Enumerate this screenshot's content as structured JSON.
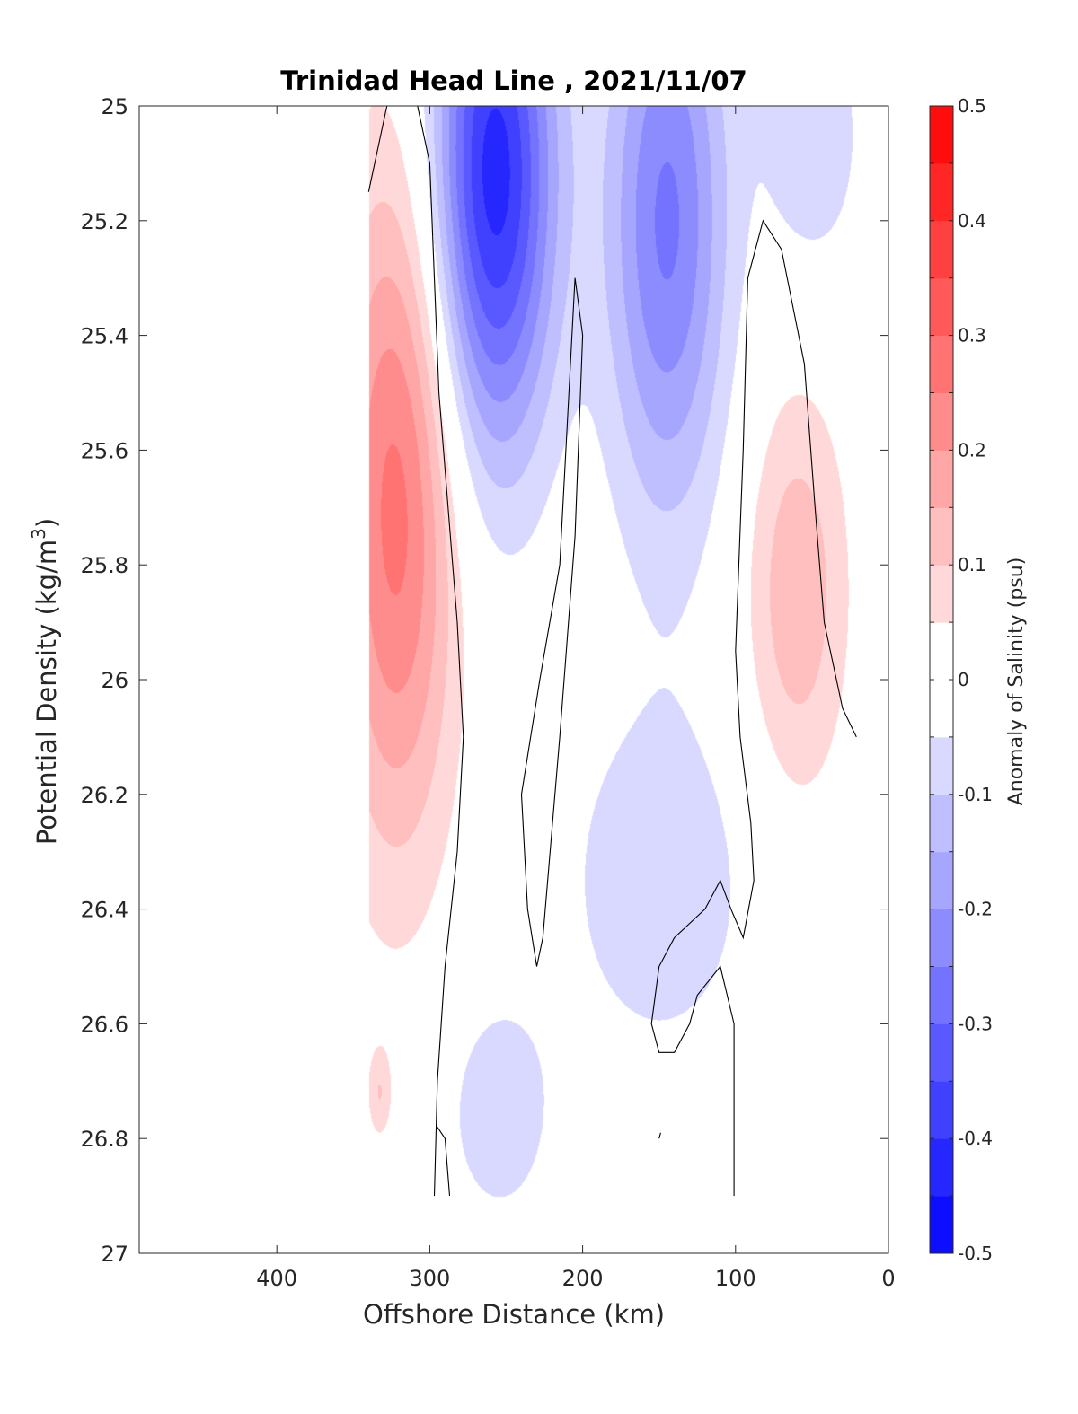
{
  "chart_data": {
    "type": "heatmap",
    "title": "Trinidad Head Line , 2021/11/07",
    "xlabel": "Offshore Distance (km)",
    "ylabel": "Potential Density (kg/m",
    "ylabel_sup": "3",
    "ylabel_suffix": ")",
    "colorbar_label": "Anomaly of Salinity (psu)",
    "x_reversed": true,
    "xlim": [
      490,
      0
    ],
    "ylim": [
      25,
      27
    ],
    "y_reversed": true,
    "xticks": [
      400,
      300,
      200,
      100,
      0
    ],
    "yticks": [
      25,
      25.2,
      25.4,
      25.6,
      25.8,
      26,
      26.2,
      26.4,
      26.6,
      26.8,
      27
    ],
    "colorbar": {
      "range": [
        -0.5,
        0.5
      ],
      "step": 0.05,
      "tick_values": [
        0.5,
        0.4,
        0.3,
        0.2,
        0.1,
        0,
        -0.1,
        -0.2,
        -0.3,
        -0.4,
        -0.5
      ],
      "tick_labels": [
        "0.5",
        "0.4",
        "0.3",
        "0.2",
        "0.1",
        "0",
        "-0.1",
        "-0.2",
        "-0.3",
        "-0.4",
        "-0.5"
      ]
    },
    "data_extent": {
      "x": [
        340,
        10
      ],
      "y": [
        25,
        26.9
      ]
    },
    "anomaly_features": [
      {
        "sign": "positive",
        "x": 322,
        "y": 25.7,
        "peak": 0.27,
        "x_halfwidth": 50,
        "y_halfwidth": 0.75
      },
      {
        "sign": "positive",
        "x": 60,
        "y": 25.85,
        "peak": 0.14,
        "x_halfwidth": 42,
        "y_halfwidth": 0.45
      },
      {
        "sign": "positive",
        "x": 333,
        "y": 26.72,
        "peak": 0.09,
        "x_halfwidth": 10,
        "y_halfwidth": 0.1
      },
      {
        "sign": "negative",
        "x": 258,
        "y": 25.12,
        "peak": -0.43,
        "x_halfwidth": 50,
        "y_halfwidth": 0.6
      },
      {
        "sign": "negative",
        "x": 145,
        "y": 25.2,
        "peak": -0.26,
        "x_halfwidth": 50,
        "y_halfwidth": 0.65
      },
      {
        "sign": "negative",
        "x": 50,
        "y": 25.05,
        "peak": -0.1,
        "x_halfwidth": 40,
        "y_halfwidth": 0.3
      },
      {
        "sign": "negative",
        "x": 150,
        "y": 26.35,
        "peak": -0.09,
        "x_halfwidth": 80,
        "y_halfwidth": 0.4
      },
      {
        "sign": "negative",
        "x": 255,
        "y": 26.75,
        "peak": -0.09,
        "x_halfwidth": 45,
        "y_halfwidth": 0.25
      }
    ],
    "zero_contours": [
      [
        [
          340,
          25.15
        ],
        [
          328,
          25.0
        ]
      ],
      [
        [
          308,
          25.0
        ],
        [
          300,
          25.1
        ],
        [
          297,
          25.3
        ],
        [
          294,
          25.5
        ],
        [
          288,
          25.7
        ],
        [
          282,
          25.9
        ],
        [
          278,
          26.1
        ],
        [
          282,
          26.3
        ],
        [
          290,
          26.5
        ],
        [
          295,
          26.7
        ],
        [
          297,
          26.9
        ]
      ],
      [
        [
          287,
          26.9
        ],
        [
          290,
          26.8
        ],
        [
          295,
          26.78
        ]
      ],
      [
        [
          205,
          25.3
        ],
        [
          208,
          25.45
        ],
        [
          215,
          25.8
        ],
        [
          228,
          26.0
        ],
        [
          240,
          26.2
        ],
        [
          236,
          26.4
        ],
        [
          230,
          26.5
        ],
        [
          226,
          26.45
        ],
        [
          215,
          26.1
        ],
        [
          205,
          25.75
        ],
        [
          200,
          25.4
        ],
        [
          205,
          25.3
        ]
      ],
      [
        [
          87,
          25.25
        ],
        [
          82,
          25.2
        ],
        [
          70,
          25.25
        ],
        [
          55,
          25.45
        ],
        [
          48,
          25.7
        ],
        [
          42,
          25.9
        ],
        [
          30,
          26.05
        ],
        [
          21,
          26.1
        ]
      ],
      [
        [
          87,
          25.25
        ],
        [
          92,
          25.3
        ],
        [
          95,
          25.6
        ],
        [
          100,
          25.95
        ],
        [
          97,
          26.1
        ],
        [
          90,
          26.25
        ],
        [
          88,
          26.35
        ],
        [
          95,
          26.45
        ],
        [
          103,
          26.4
        ],
        [
          110,
          26.35
        ],
        [
          120,
          26.4
        ],
        [
          140,
          26.45
        ],
        [
          150,
          26.5
        ],
        [
          155,
          26.6
        ],
        [
          150,
          26.65
        ],
        [
          140,
          26.65
        ],
        [
          130,
          26.6
        ],
        [
          125,
          26.55
        ],
        [
          110,
          26.5
        ],
        [
          101,
          26.6
        ],
        [
          101,
          26.8
        ],
        [
          101,
          26.9
        ]
      ],
      [
        [
          150,
          26.8
        ],
        [
          149,
          26.79
        ]
      ]
    ]
  }
}
